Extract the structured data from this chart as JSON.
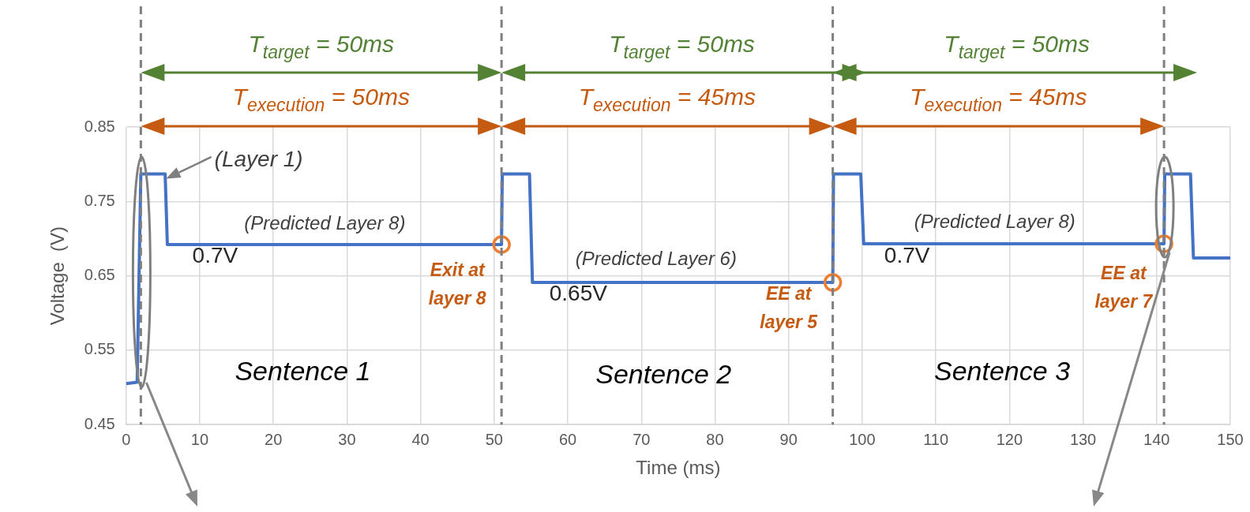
{
  "chart_data": {
    "type": "line",
    "xlabel": "Time (ms)",
    "ylabel": "Voltage  (V)",
    "xlim": [
      0,
      150
    ],
    "xticks": [
      0,
      10,
      20,
      30,
      40,
      50,
      60,
      70,
      80,
      90,
      100,
      110,
      120,
      130,
      140,
      150
    ],
    "ylim": [
      0.45,
      0.85
    ],
    "yticks": [
      0.45,
      0.55,
      0.65,
      0.75,
      0.85
    ],
    "grid": true,
    "legend": false,
    "series": [
      {
        "color": "#4472c4",
        "marker": "none",
        "x": [
          0,
          1.5,
          2,
          5.3,
          5.6,
          51,
          51.1,
          54.8,
          55.2,
          96,
          96.1,
          99.8,
          100.2,
          141,
          141.1,
          144.6,
          145,
          150
        ],
        "values": [
          0.505,
          0.507,
          0.787,
          0.787,
          0.692,
          0.692,
          0.787,
          0.787,
          0.641,
          0.641,
          0.787,
          0.787,
          0.693,
          0.693,
          0.787,
          0.787,
          0.674,
          0.674
        ]
      },
      {
        "type": "scatter",
        "color": "#ed7d31",
        "marker": "circle",
        "x": [
          51,
          96,
          141
        ],
        "values": [
          0.692,
          0.641,
          0.693
        ]
      }
    ],
    "ref_lines": [
      {
        "axis": "x",
        "value": 2,
        "color": "#7f7f7f",
        "line_style": "dashed"
      },
      {
        "axis": "x",
        "value": 51,
        "color": "#7f7f7f",
        "line_style": "dashed"
      },
      {
        "axis": "x",
        "value": 96,
        "color": "#7f7f7f",
        "line_style": "dashed"
      },
      {
        "axis": "x",
        "value": 141,
        "color": "#7f7f7f",
        "line_style": "dashed"
      }
    ],
    "annotations": [
      "T$_{target}$ = 50ms",
      "T$_{target}$ = 50ms",
      "T$_{target}$ = 50ms",
      "T$_{execution}$ = 50ms",
      "T$_{execution}$ = 45ms",
      "T$_{execution}$ = 45ms",
      "(Layer 1)",
      "(Predicted Layer 8)",
      "0.7V",
      "Exit at\nlayer 8",
      "(Predicted Layer 6)",
      "0.65V",
      "EE at\nlayer 5",
      "(Predicted Layer 8)",
      "0.7V",
      "EE at\nlayer 7",
      "Sentence 1",
      "Sentence 2",
      "Sentence 3"
    ]
  }
}
